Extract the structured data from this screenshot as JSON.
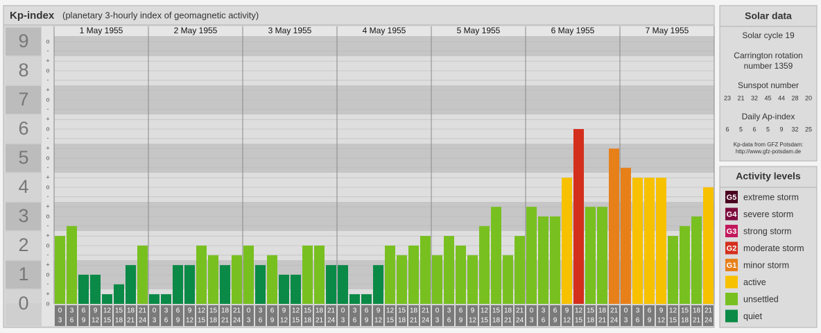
{
  "chart_data": {
    "type": "bar",
    "title": "Kp-index",
    "subtitle": "(planetary 3-hourly index of geomagnetic activity)",
    "ylim": [
      0,
      9.5
    ],
    "yticks": [
      0,
      1,
      2,
      3,
      4,
      5,
      6,
      7,
      8,
      9
    ],
    "minor_ticks": [
      {
        "value": 0,
        "label": "o"
      },
      {
        "value": 0.33,
        "label": "+"
      },
      {
        "value": 0.67,
        "label": "-"
      },
      {
        "value": 1,
        "label": "o"
      },
      {
        "value": 1.33,
        "label": "+"
      },
      {
        "value": 1.67,
        "label": "-"
      },
      {
        "value": 2,
        "label": "o"
      },
      {
        "value": 2.33,
        "label": "+"
      },
      {
        "value": 2.67,
        "label": "-"
      },
      {
        "value": 3,
        "label": "o"
      },
      {
        "value": 3.33,
        "label": "+"
      },
      {
        "value": 3.67,
        "label": "-"
      },
      {
        "value": 4,
        "label": "o"
      },
      {
        "value": 4.33,
        "label": "+"
      },
      {
        "value": 4.67,
        "label": "-"
      },
      {
        "value": 5,
        "label": "o"
      },
      {
        "value": 5.33,
        "label": "+"
      },
      {
        "value": 5.67,
        "label": "-"
      },
      {
        "value": 6,
        "label": "o"
      },
      {
        "value": 6.33,
        "label": "+"
      },
      {
        "value": 6.67,
        "label": "-"
      },
      {
        "value": 7,
        "label": "o"
      },
      {
        "value": 7.33,
        "label": "+"
      },
      {
        "value": 7.67,
        "label": "-"
      },
      {
        "value": 8,
        "label": "o"
      },
      {
        "value": 8.33,
        "label": "+"
      },
      {
        "value": 8.67,
        "label": "-"
      },
      {
        "value": 9,
        "label": "o"
      }
    ],
    "hour_ranges": [
      [
        "0",
        "3"
      ],
      [
        "3",
        "6"
      ],
      [
        "6",
        "9"
      ],
      [
        "9",
        "12"
      ],
      [
        "12",
        "15"
      ],
      [
        "15",
        "18"
      ],
      [
        "18",
        "21"
      ],
      [
        "21",
        "24"
      ]
    ],
    "days": [
      {
        "date": "1 May 1955",
        "values": [
          2.33,
          2.67,
          1,
          1,
          0.33,
          0.67,
          1.33,
          2
        ],
        "colors": [
          "#78c020",
          "#78c020",
          "#0a8a46",
          "#0a8a46",
          "#0a8a46",
          "#0a8a46",
          "#0a8a46",
          "#78c020"
        ]
      },
      {
        "date": "2 May 1955",
        "values": [
          0.33,
          0.33,
          1.33,
          1.33,
          2,
          1.67,
          1.33,
          1.67
        ],
        "colors": [
          "#0a8a46",
          "#0a8a46",
          "#0a8a46",
          "#0a8a46",
          "#78c020",
          "#78c020",
          "#0a8a46",
          "#78c020"
        ]
      },
      {
        "date": "3 May 1955",
        "values": [
          2,
          1.33,
          1.67,
          1,
          1,
          2,
          2,
          1.33
        ],
        "colors": [
          "#78c020",
          "#0a8a46",
          "#78c020",
          "#0a8a46",
          "#0a8a46",
          "#78c020",
          "#78c020",
          "#0a8a46"
        ]
      },
      {
        "date": "4 May 1955",
        "values": [
          1.33,
          0.33,
          0.33,
          1.33,
          2,
          1.67,
          2,
          2.33
        ],
        "colors": [
          "#0a8a46",
          "#0a8a46",
          "#0a8a46",
          "#0a8a46",
          "#78c020",
          "#78c020",
          "#78c020",
          "#78c020"
        ]
      },
      {
        "date": "5 May 1955",
        "values": [
          1.67,
          2.33,
          2,
          1.67,
          2.67,
          3.33,
          1.67,
          2.33
        ],
        "colors": [
          "#78c020",
          "#78c020",
          "#78c020",
          "#78c020",
          "#78c020",
          "#78c020",
          "#78c020",
          "#78c020"
        ]
      },
      {
        "date": "6 May 1955",
        "values": [
          3.33,
          3,
          3,
          4.33,
          6,
          3.33,
          3.33,
          5.33
        ],
        "colors": [
          "#78c020",
          "#78c020",
          "#78c020",
          "#f7c100",
          "#d42f1d",
          "#78c020",
          "#78c020",
          "#e8801a"
        ]
      },
      {
        "date": "7 May 1955",
        "values": [
          4.67,
          4.33,
          4.33,
          4.33,
          2.33,
          2.67,
          3,
          4
        ],
        "colors": [
          "#e8801a",
          "#f7c100",
          "#f7c100",
          "#f7c100",
          "#78c020",
          "#78c020",
          "#78c020",
          "#f7c100"
        ]
      }
    ]
  },
  "solar_data": {
    "title": "Solar data",
    "cycle": "Solar cycle 19",
    "carrington": [
      "Carrington rotation",
      "number 1359"
    ],
    "sunspot_title": "Sunspot number",
    "sunspot": [
      23,
      21,
      32,
      45,
      44,
      28,
      20
    ],
    "ap_title": "Daily Ap-index",
    "ap": [
      6,
      5,
      6,
      5,
      9,
      32,
      25
    ],
    "source": [
      "Kp-data from GFZ Potsdam:",
      "http://www.gfz-potsdam.de"
    ]
  },
  "activity_levels": {
    "title": "Activity levels",
    "items": [
      {
        "badge": "G5",
        "label": "extreme storm",
        "color": "#4a0020"
      },
      {
        "badge": "G4",
        "label": "severe storm",
        "color": "#7d0a3c"
      },
      {
        "badge": "G3",
        "label": "strong storm",
        "color": "#c2185b"
      },
      {
        "badge": "G2",
        "label": "moderate storm",
        "color": "#d42f1d"
      },
      {
        "badge": "G1",
        "label": "minor storm",
        "color": "#e8801a"
      },
      {
        "label": "active",
        "color": "#f7c100"
      },
      {
        "label": "unsettled",
        "color": "#78c020"
      },
      {
        "label": "quiet",
        "color": "#0a8a46"
      }
    ]
  }
}
